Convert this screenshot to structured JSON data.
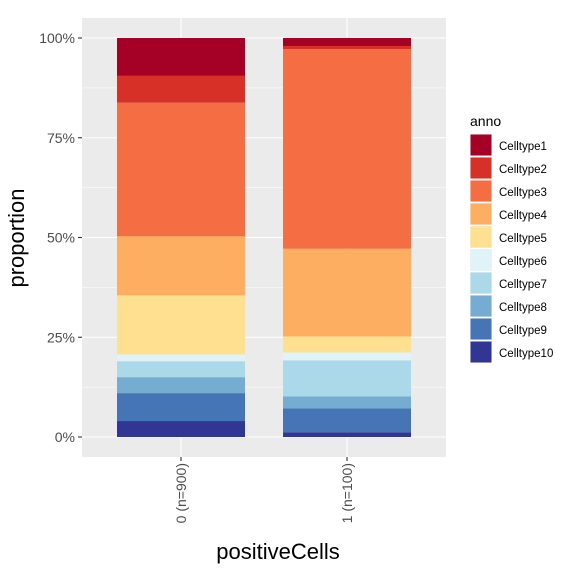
{
  "chart_data": {
    "type": "bar",
    "stacked": true,
    "xlabel": "positiveCells",
    "ylabel": "proportion",
    "categories": [
      "0 (n=900)",
      "1 (n=100)"
    ],
    "ylim": [
      0,
      1
    ],
    "yticks": [
      {
        "value": 0,
        "label": "0%"
      },
      {
        "value": 0.25,
        "label": "25%"
      },
      {
        "value": 0.5,
        "label": "50%"
      },
      {
        "value": 0.75,
        "label": "75%"
      },
      {
        "value": 1,
        "label": "100%"
      }
    ],
    "grid": true,
    "legend_title": "anno",
    "legend_position": "right",
    "series": [
      {
        "name": "Celltype1",
        "color": "#A50026",
        "values": [
          0.095,
          0.02
        ]
      },
      {
        "name": "Celltype2",
        "color": "#D73027",
        "values": [
          0.067,
          0.008
        ]
      },
      {
        "name": "Celltype3",
        "color": "#F46D43",
        "values": [
          0.335,
          0.5
        ]
      },
      {
        "name": "Celltype4",
        "color": "#FDAE61",
        "values": [
          0.148,
          0.22
        ]
      },
      {
        "name": "Celltype5",
        "color": "#FEE090",
        "values": [
          0.148,
          0.04
        ]
      },
      {
        "name": "Celltype6",
        "color": "#E0F3F8",
        "values": [
          0.017,
          0.02
        ]
      },
      {
        "name": "Celltype7",
        "color": "#ABD9E9",
        "values": [
          0.04,
          0.09
        ]
      },
      {
        "name": "Celltype8",
        "color": "#74ADD1",
        "values": [
          0.04,
          0.03
        ]
      },
      {
        "name": "Celltype9",
        "color": "#4575B4",
        "values": [
          0.07,
          0.06
        ]
      },
      {
        "name": "Celltype10",
        "color": "#313695",
        "values": [
          0.04,
          0.012
        ]
      }
    ]
  }
}
